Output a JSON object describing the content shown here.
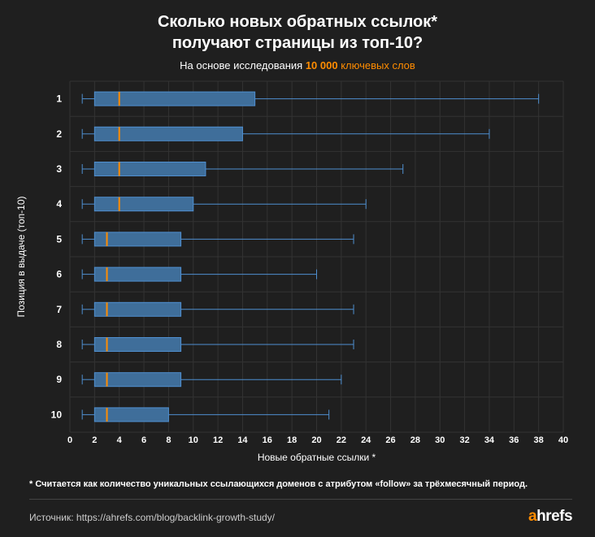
{
  "header": {
    "title_line1": "Сколько новых обратных ссылок*",
    "title_line2": "получают страницы из топ-10?",
    "subtitle_prefix": "На основе исследования ",
    "subtitle_number": "10 000",
    "subtitle_suffix": " ключевых слов"
  },
  "footer": {
    "footnote": "* Считается как количество уникальных ссылающихся доменов с атрибутом «follow» за трёхмесячный период.",
    "source": "Источник: https://ahrefs.com/blog/backlink-growth-study/",
    "brand_accent": "a",
    "brand_rest": "hrefs"
  },
  "colors": {
    "background": "#1f1f1f",
    "box_fill": "#3f6e9a",
    "box_stroke": "#4f8fd0",
    "median": "#ff8c00",
    "accent": "#ff8c00",
    "grid": "#333333"
  },
  "chart_data": {
    "type": "boxplot",
    "orientation": "horizontal",
    "xlabel": "Новые обратные ссылки *",
    "ylabel": "Позиция в выдаче (топ-10)",
    "xlim": [
      0,
      40
    ],
    "xticks": [
      0,
      2,
      4,
      6,
      8,
      10,
      12,
      14,
      16,
      18,
      20,
      22,
      24,
      26,
      28,
      30,
      32,
      34,
      36,
      38,
      40
    ],
    "grid": true,
    "categories": [
      "1",
      "2",
      "3",
      "4",
      "5",
      "6",
      "7",
      "8",
      "9",
      "10"
    ],
    "boxes": [
      {
        "min": 1,
        "q1": 2,
        "median": 4,
        "q3": 15,
        "max": 38
      },
      {
        "min": 1,
        "q1": 2,
        "median": 4,
        "q3": 14,
        "max": 34
      },
      {
        "min": 1,
        "q1": 2,
        "median": 4,
        "q3": 11,
        "max": 27
      },
      {
        "min": 1,
        "q1": 2,
        "median": 4,
        "q3": 10,
        "max": 24
      },
      {
        "min": 1,
        "q1": 2,
        "median": 3,
        "q3": 9,
        "max": 23
      },
      {
        "min": 1,
        "q1": 2,
        "median": 3,
        "q3": 9,
        "max": 20
      },
      {
        "min": 1,
        "q1": 2,
        "median": 3,
        "q3": 9,
        "max": 23
      },
      {
        "min": 1,
        "q1": 2,
        "median": 3,
        "q3": 9,
        "max": 23
      },
      {
        "min": 1,
        "q1": 2,
        "median": 3,
        "q3": 9,
        "max": 22
      },
      {
        "min": 1,
        "q1": 2,
        "median": 3,
        "q3": 8,
        "max": 21
      }
    ]
  }
}
